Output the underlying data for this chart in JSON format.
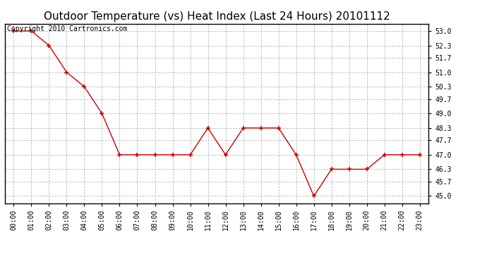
{
  "title": "Outdoor Temperature (vs) Heat Index (Last 24 Hours) 20101112",
  "copyright_text": "Copyright 2010 Cartronics.com",
  "x_labels": [
    "00:00",
    "01:00",
    "02:00",
    "03:00",
    "04:00",
    "05:00",
    "06:00",
    "07:00",
    "08:00",
    "09:00",
    "10:00",
    "11:00",
    "12:00",
    "13:00",
    "14:00",
    "15:00",
    "16:00",
    "17:00",
    "18:00",
    "19:00",
    "20:00",
    "21:00",
    "22:00",
    "23:00"
  ],
  "y_values": [
    53.0,
    53.0,
    52.3,
    51.0,
    50.3,
    49.0,
    47.0,
    47.0,
    47.0,
    47.0,
    47.0,
    48.3,
    47.0,
    48.3,
    48.3,
    48.3,
    47.0,
    45.0,
    46.3,
    46.3,
    46.3,
    47.0,
    47.0,
    47.0
  ],
  "y_ticks": [
    45.0,
    45.7,
    46.3,
    47.0,
    47.7,
    48.3,
    49.0,
    49.7,
    50.3,
    51.0,
    51.7,
    52.3,
    53.0
  ],
  "ylim": [
    44.65,
    53.35
  ],
  "line_color": "#cc0000",
  "marker_color": "#cc0000",
  "background_color": "#ffffff",
  "plot_bg_color": "#ffffff",
  "grid_color": "#bbbbbb",
  "title_fontsize": 11,
  "copyright_fontsize": 7,
  "tick_fontsize": 7
}
